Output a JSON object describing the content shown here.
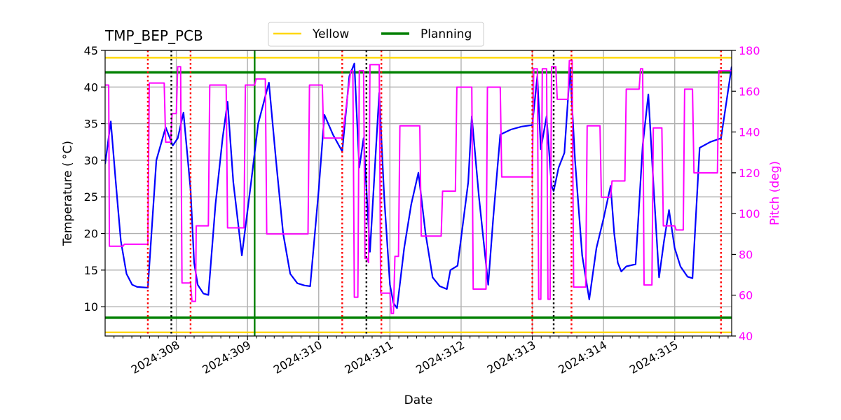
{
  "chart_data": {
    "type": "line",
    "title": "TMP_BEP_PCB",
    "xlabel": "Date",
    "ylabel": "Temperature ($^\\circ$C)",
    "ylabel_display": "Temperature ( °C)",
    "y2label": "Pitch (deg)",
    "xlim": [
      307.0,
      315.8
    ],
    "ylim": [
      6,
      45
    ],
    "y2lim": [
      40,
      180
    ],
    "x_ticks": [
      308,
      309,
      310,
      311,
      312,
      313,
      314,
      315
    ],
    "x_tick_labels": [
      "2024:308",
      "2024:309",
      "2024:310",
      "2024:311",
      "2024:312",
      "2024:313",
      "2024:314",
      "2024:315"
    ],
    "y_ticks": [
      10,
      15,
      20,
      25,
      30,
      35,
      40,
      45
    ],
    "y2_ticks": [
      40,
      60,
      80,
      100,
      120,
      140,
      160,
      180
    ],
    "grid": true,
    "legend_position": "top-center",
    "legend": [
      {
        "name": "Yellow",
        "color": "#FFD700"
      },
      {
        "name": "Planning",
        "color": "#008000"
      }
    ],
    "limits": [
      {
        "name": "Yellow",
        "values": [
          6.5,
          44.0
        ],
        "color": "#FFD700"
      },
      {
        "name": "Planning",
        "values": [
          8.5,
          42.0
        ],
        "color": "#008000"
      }
    ],
    "planning_vline_x": 309.1,
    "red_dotted_x": [
      307.6,
      308.2,
      310.33,
      310.88,
      313.0,
      313.55,
      315.65
    ],
    "black_dotted_x": [
      307.93,
      310.67,
      313.3
    ],
    "series": [
      {
        "name": "Temperature",
        "axis": "left",
        "color": "#0000FF",
        "points": [
          [
            307.0,
            29.5
          ],
          [
            307.08,
            35.3
          ],
          [
            307.15,
            27.0
          ],
          [
            307.22,
            19.0
          ],
          [
            307.3,
            14.5
          ],
          [
            307.38,
            13.0
          ],
          [
            307.45,
            12.7
          ],
          [
            307.6,
            12.6
          ],
          [
            307.72,
            30.0
          ],
          [
            307.85,
            34.5
          ],
          [
            307.95,
            32.0
          ],
          [
            308.02,
            33.0
          ],
          [
            308.1,
            36.5
          ],
          [
            308.2,
            26.0
          ],
          [
            308.25,
            16.0
          ],
          [
            308.3,
            13.0
          ],
          [
            308.38,
            11.8
          ],
          [
            308.45,
            11.6
          ],
          [
            308.55,
            24.0
          ],
          [
            308.65,
            33.0
          ],
          [
            308.72,
            38.0
          ],
          [
            308.8,
            27.0
          ],
          [
            308.92,
            17.0
          ],
          [
            309.05,
            27.0
          ],
          [
            309.15,
            35.0
          ],
          [
            309.3,
            40.6
          ],
          [
            309.4,
            30.0
          ],
          [
            309.5,
            20.0
          ],
          [
            309.6,
            14.5
          ],
          [
            309.7,
            13.2
          ],
          [
            309.8,
            12.9
          ],
          [
            309.88,
            12.8
          ],
          [
            310.0,
            26.0
          ],
          [
            310.08,
            36.2
          ],
          [
            310.2,
            33.5
          ],
          [
            310.33,
            31.2
          ],
          [
            310.43,
            41.5
          ],
          [
            310.5,
            43.2
          ],
          [
            310.57,
            29.0
          ],
          [
            310.63,
            33.0
          ],
          [
            310.72,
            17.5
          ],
          [
            310.85,
            39.2
          ],
          [
            310.92,
            25.0
          ],
          [
            311.0,
            13.0
          ],
          [
            311.05,
            10.5
          ],
          [
            311.1,
            9.8
          ],
          [
            311.2,
            18.0
          ],
          [
            311.3,
            24.0
          ],
          [
            311.4,
            28.3
          ],
          [
            311.5,
            20.0
          ],
          [
            311.6,
            14.0
          ],
          [
            311.7,
            12.8
          ],
          [
            311.8,
            12.4
          ],
          [
            311.85,
            15.0
          ],
          [
            311.95,
            15.6
          ],
          [
            312.1,
            27.0
          ],
          [
            312.15,
            36.0
          ],
          [
            312.25,
            25.0
          ],
          [
            312.38,
            13.0
          ],
          [
            312.45,
            22.0
          ],
          [
            312.55,
            33.5
          ],
          [
            312.7,
            34.2
          ],
          [
            312.85,
            34.6
          ],
          [
            313.0,
            34.8
          ],
          [
            313.07,
            41.5
          ],
          [
            313.12,
            31.5
          ],
          [
            313.2,
            36.0
          ],
          [
            313.27,
            26.5
          ],
          [
            313.3,
            25.8
          ],
          [
            313.37,
            29.0
          ],
          [
            313.45,
            31.0
          ],
          [
            313.53,
            42.6
          ],
          [
            313.6,
            30.0
          ],
          [
            313.7,
            17.0
          ],
          [
            313.8,
            11.0
          ],
          [
            313.9,
            18.0
          ],
          [
            314.0,
            22.0
          ],
          [
            314.1,
            26.5
          ],
          [
            314.15,
            20.0
          ],
          [
            314.2,
            16.0
          ],
          [
            314.25,
            14.8
          ],
          [
            314.32,
            15.5
          ],
          [
            314.45,
            15.8
          ],
          [
            314.55,
            32.0
          ],
          [
            314.63,
            39.0
          ],
          [
            314.7,
            27.0
          ],
          [
            314.78,
            14.0
          ],
          [
            314.85,
            19.0
          ],
          [
            314.92,
            23.2
          ],
          [
            315.0,
            18.0
          ],
          [
            315.08,
            15.5
          ],
          [
            315.18,
            14.1
          ],
          [
            315.25,
            13.9
          ],
          [
            315.35,
            31.7
          ],
          [
            315.5,
            32.5
          ],
          [
            315.65,
            33.0
          ],
          [
            315.8,
            42.8
          ]
        ]
      },
      {
        "name": "Pitch",
        "axis": "right",
        "color": "#FF00FF",
        "points": [
          [
            307.0,
            163
          ],
          [
            307.05,
            163
          ],
          [
            307.06,
            84
          ],
          [
            307.25,
            84
          ],
          [
            307.27,
            85
          ],
          [
            307.6,
            85
          ],
          [
            307.62,
            164
          ],
          [
            307.83,
            164
          ],
          [
            307.85,
            135
          ],
          [
            307.92,
            135
          ],
          [
            307.94,
            149
          ],
          [
            308.0,
            149
          ],
          [
            308.02,
            172
          ],
          [
            308.06,
            172
          ],
          [
            308.08,
            66
          ],
          [
            308.2,
            66
          ],
          [
            308.22,
            57
          ],
          [
            308.27,
            57
          ],
          [
            308.28,
            94
          ],
          [
            308.45,
            94
          ],
          [
            308.47,
            163
          ],
          [
            308.7,
            163
          ],
          [
            308.72,
            93
          ],
          [
            308.95,
            93
          ],
          [
            308.97,
            163
          ],
          [
            309.1,
            163
          ],
          [
            309.12,
            166
          ],
          [
            309.25,
            166
          ],
          [
            309.27,
            90
          ],
          [
            309.85,
            90
          ],
          [
            309.87,
            163
          ],
          [
            310.05,
            163
          ],
          [
            310.07,
            137
          ],
          [
            310.33,
            137
          ],
          [
            310.45,
            170
          ],
          [
            310.48,
            170
          ],
          [
            310.5,
            59
          ],
          [
            310.55,
            59
          ],
          [
            310.57,
            170
          ],
          [
            310.63,
            170
          ],
          [
            310.65,
            78
          ],
          [
            310.68,
            78
          ],
          [
            310.7,
            76
          ],
          [
            310.72,
            173
          ],
          [
            310.85,
            173
          ],
          [
            310.87,
            61
          ],
          [
            311.0,
            61
          ],
          [
            311.02,
            51
          ],
          [
            311.05,
            51
          ],
          [
            311.07,
            79
          ],
          [
            311.12,
            79
          ],
          [
            311.14,
            143
          ],
          [
            311.42,
            143
          ],
          [
            311.44,
            89
          ],
          [
            311.72,
            89
          ],
          [
            311.74,
            111
          ],
          [
            311.92,
            111
          ],
          [
            311.94,
            162
          ],
          [
            312.15,
            162
          ],
          [
            312.17,
            63
          ],
          [
            312.35,
            63
          ],
          [
            312.37,
            162
          ],
          [
            312.55,
            162
          ],
          [
            312.57,
            118
          ],
          [
            313.0,
            118
          ],
          [
            313.02,
            171
          ],
          [
            313.07,
            171
          ],
          [
            313.09,
            58
          ],
          [
            313.12,
            58
          ],
          [
            313.14,
            171
          ],
          [
            313.2,
            171
          ],
          [
            313.22,
            58
          ],
          [
            313.25,
            58
          ],
          [
            313.27,
            172
          ],
          [
            313.33,
            172
          ],
          [
            313.35,
            156
          ],
          [
            313.5,
            156
          ],
          [
            313.52,
            175
          ],
          [
            313.56,
            175
          ],
          [
            313.58,
            64
          ],
          [
            313.75,
            64
          ],
          [
            313.77,
            143
          ],
          [
            313.95,
            143
          ],
          [
            313.97,
            108
          ],
          [
            314.1,
            108
          ],
          [
            314.12,
            116
          ],
          [
            314.3,
            116
          ],
          [
            314.32,
            161
          ],
          [
            314.5,
            161
          ],
          [
            314.52,
            171
          ],
          [
            314.55,
            171
          ],
          [
            314.57,
            65
          ],
          [
            314.68,
            65
          ],
          [
            314.7,
            142
          ],
          [
            314.82,
            142
          ],
          [
            314.84,
            94
          ],
          [
            315.0,
            94
          ],
          [
            315.02,
            92
          ],
          [
            315.12,
            92
          ],
          [
            315.14,
            161
          ],
          [
            315.25,
            161
          ],
          [
            315.27,
            120
          ],
          [
            315.6,
            120
          ],
          [
            315.62,
            170
          ],
          [
            315.8,
            170
          ]
        ]
      }
    ]
  }
}
